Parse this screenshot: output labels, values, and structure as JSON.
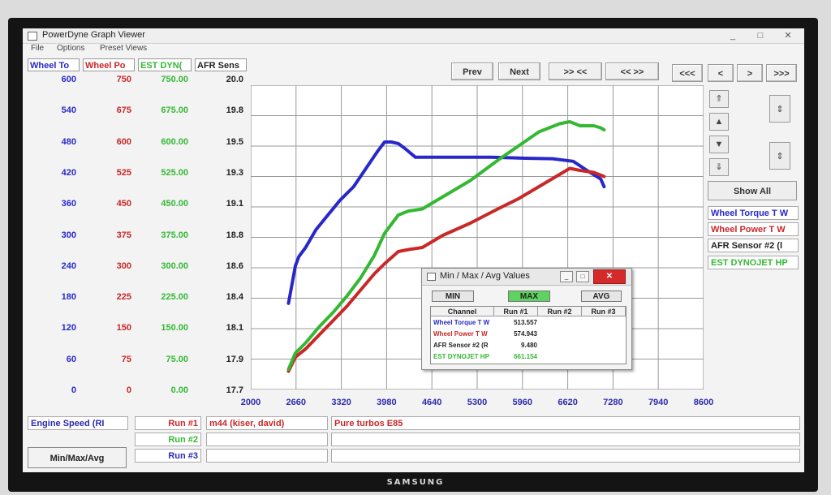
{
  "window": {
    "title": "PowerDyne Graph Viewer",
    "minimize": "_",
    "maximize": "□",
    "close": "✕"
  },
  "menu": [
    "File",
    "Options",
    "Preset Views"
  ],
  "channels": [
    {
      "header": "Wheel To",
      "color": "#2828c8",
      "ticks": [
        "600",
        "540",
        "480",
        "420",
        "360",
        "300",
        "240",
        "180",
        "120",
        "60",
        "0"
      ]
    },
    {
      "header": "Wheel Po",
      "color": "#c82828",
      "ticks": [
        "750",
        "675",
        "600",
        "525",
        "450",
        "375",
        "300",
        "225",
        "150",
        "75",
        "0"
      ]
    },
    {
      "header": "EST DYN(",
      "color": "#34b834",
      "ticks": [
        "750.00",
        "675.00",
        "600.00",
        "525.00",
        "450.00",
        "375.00",
        "300.00",
        "225.00",
        "150.00",
        "75.00",
        "0.00"
      ]
    },
    {
      "header": "AFR Sens",
      "color": "#222222",
      "ticks": [
        "20.0",
        "19.8",
        "19.5",
        "19.3",
        "19.1",
        "18.8",
        "18.6",
        "18.4",
        "18.1",
        "17.9",
        "17.7"
      ]
    }
  ],
  "toolbar": {
    "prev": "Prev",
    "next": "Next",
    "zoom_in": ">> <<",
    "zoom_out": "<< >>",
    "first": "<<<",
    "back": "<",
    "fwd": ">",
    "last": ">>>"
  },
  "side_buttons": {
    "up2": "⇑",
    "up": "▲",
    "down": "▼",
    "down2": "⇓",
    "expand": "⇕",
    "contract": "⇕"
  },
  "show_all": "Show All",
  "legend": [
    {
      "label": "Wheel Torque T W",
      "color": "#2828c8"
    },
    {
      "label": "Wheel Power T W",
      "color": "#c82828"
    },
    {
      "label": "AFR Sensor #2 (l",
      "color": "#222222"
    },
    {
      "label": "EST DYNOJET HP",
      "color": "#34b834"
    }
  ],
  "chart_data": {
    "type": "line",
    "x_ticks": [
      "2000",
      "2660",
      "3320",
      "3980",
      "4640",
      "5300",
      "5960",
      "6620",
      "7280",
      "7940",
      "8600"
    ],
    "xlim": [
      2000,
      8600
    ],
    "grid": true,
    "series": [
      {
        "name": "Wheel Torque T W",
        "color": "#2828c8",
        "axis_max": 600,
        "x": [
          2550,
          2650,
          2700,
          2800,
          2950,
          3100,
          3300,
          3500,
          3700,
          3850,
          3950,
          4050,
          4150,
          4250,
          4400,
          4600,
          5000,
          5500,
          6000,
          6400,
          6700,
          6900,
          7100,
          7150
        ],
        "y": [
          170,
          244,
          262,
          280,
          315,
          340,
          373,
          400,
          440,
          470,
          488,
          488,
          485,
          475,
          458,
          458,
          458,
          458,
          456,
          455,
          450,
          432,
          415,
          400
        ]
      },
      {
        "name": "Wheel Power T W",
        "color": "#c82828",
        "axis_max": 750,
        "x": [
          2550,
          2650,
          2800,
          3000,
          3200,
          3400,
          3600,
          3800,
          3950,
          4150,
          4300,
          4500,
          4800,
          5200,
          5600,
          5900,
          6200,
          6500,
          6650,
          6800,
          7000,
          7150
        ],
        "y": [
          45,
          80,
          100,
          135,
          170,
          205,
          245,
          285,
          310,
          340,
          345,
          350,
          380,
          410,
          445,
          470,
          500,
          530,
          545,
          540,
          535,
          525
        ]
      },
      {
        "name": "EST DYNOJET HP",
        "color": "#34b834",
        "axis_max": 750,
        "x": [
          2550,
          2650,
          2800,
          3000,
          3200,
          3400,
          3600,
          3800,
          3950,
          4150,
          4300,
          4500,
          4800,
          5200,
          5600,
          5900,
          6200,
          6500,
          6650,
          6800,
          7000,
          7100,
          7150
        ],
        "y": [
          50,
          90,
          115,
          155,
          190,
          230,
          275,
          330,
          385,
          430,
          440,
          445,
          475,
          515,
          565,
          600,
          635,
          655,
          660,
          650,
          650,
          645,
          640
        ]
      }
    ]
  },
  "minmax": {
    "title": "Min / Max / Avg Values",
    "buttons": {
      "min": "MIN",
      "max": "MAX",
      "avg": "AVG"
    },
    "columns": [
      "Channel",
      "Run #1",
      "Run #2",
      "Run #3"
    ],
    "rows": [
      {
        "channel": "Wheel Torque T W",
        "run1": "513.557",
        "color": "#2828c8"
      },
      {
        "channel": "Wheel Power T W",
        "run1": "574.943",
        "color": "#c82828"
      },
      {
        "channel": "AFR Sensor #2 (R",
        "run1": "9.480",
        "color": "#222222"
      },
      {
        "channel": "EST DYNOJET HP",
        "run1": "661.154",
        "color": "#34b834"
      }
    ]
  },
  "bottom": {
    "x_channel": "Engine Speed (RI",
    "runs": [
      {
        "label": "Run #1",
        "name": "m44 (kiser, david)",
        "note": "Pure turbos E85"
      },
      {
        "label": "Run #2",
        "name": "",
        "note": ""
      },
      {
        "label": "Run #3",
        "name": "",
        "note": ""
      }
    ],
    "minmaxavg_button": "Min/Max/Avg"
  },
  "brand": "SAMSUNG"
}
